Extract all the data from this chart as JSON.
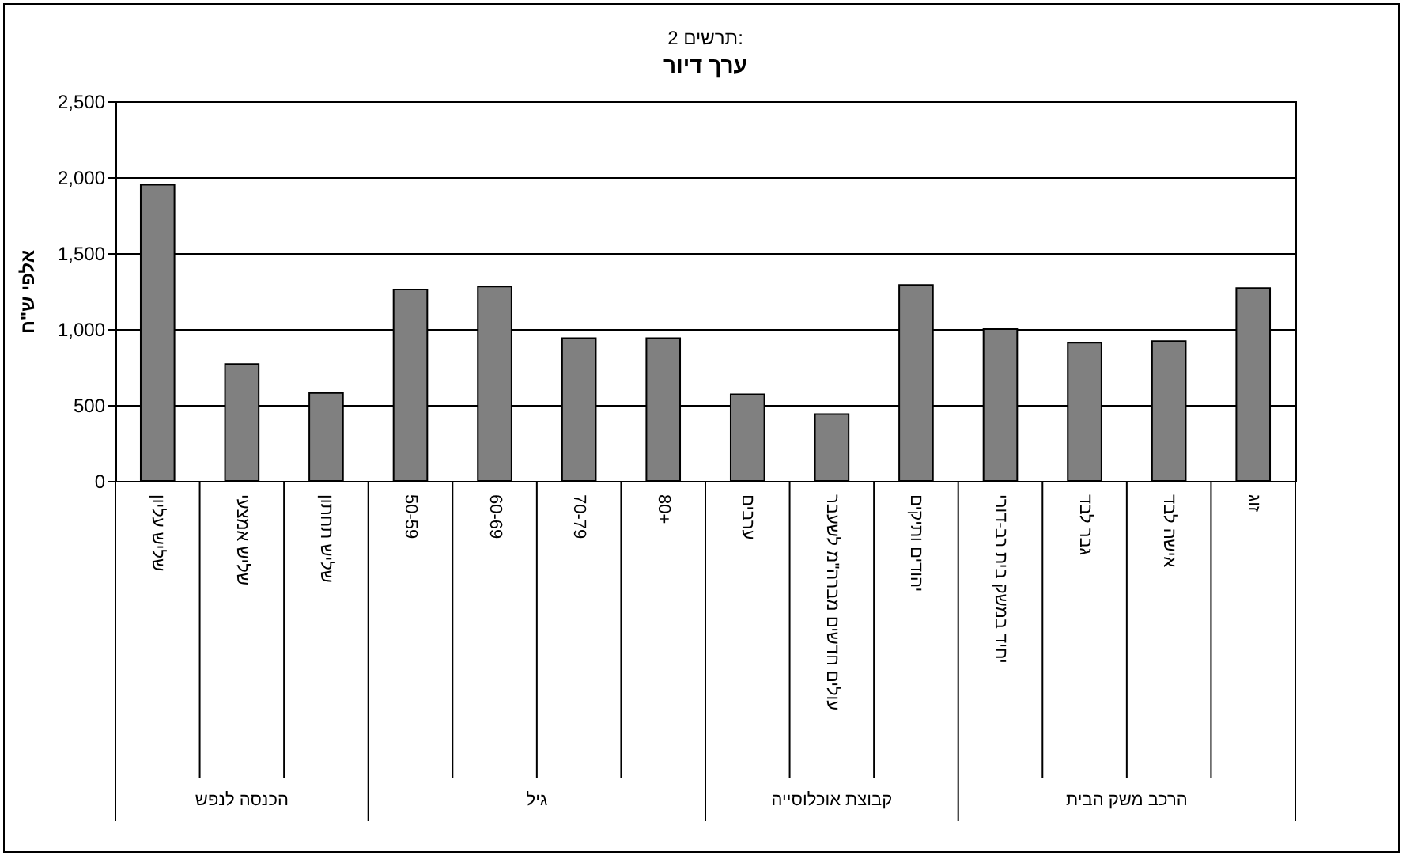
{
  "chart_data": {
    "type": "bar",
    "title": "ערך דיור",
    "subtitle": "תרשים 2:",
    "ylabel": "אלפי ש\"ח",
    "categories": [
      "שליש עליון",
      "שליש אמצעי",
      "שליש תחתון",
      "50-59",
      "60-69",
      "70-79",
      "80+",
      "ערבים",
      "עולים חדשים מברה\"מ לשעבר",
      "יהודים ותיקים",
      "יחיד במשק בית רב-דורי",
      "גבר לבד",
      "אישה לבד",
      "זוג"
    ],
    "values": [
      1950,
      770,
      580,
      1260,
      1280,
      940,
      940,
      570,
      440,
      1290,
      1000,
      910,
      920,
      1270
    ],
    "color": "#808080",
    "ylim": [
      0,
      2500
    ],
    "yticks": [
      0,
      500,
      {
        "value": 1000,
        "label": "1,000"
      },
      {
        "value": 1500,
        "label": "1,500"
      },
      {
        "value": 2000,
        "label": "2,000"
      },
      {
        "value": 2500,
        "label": "2,500"
      }
    ],
    "grid": "y",
    "annotations": [
      "הכנסה לנפש",
      "גיל",
      "קבוצת אוכלוסייה",
      "הרכב משק הבית"
    ]
  }
}
